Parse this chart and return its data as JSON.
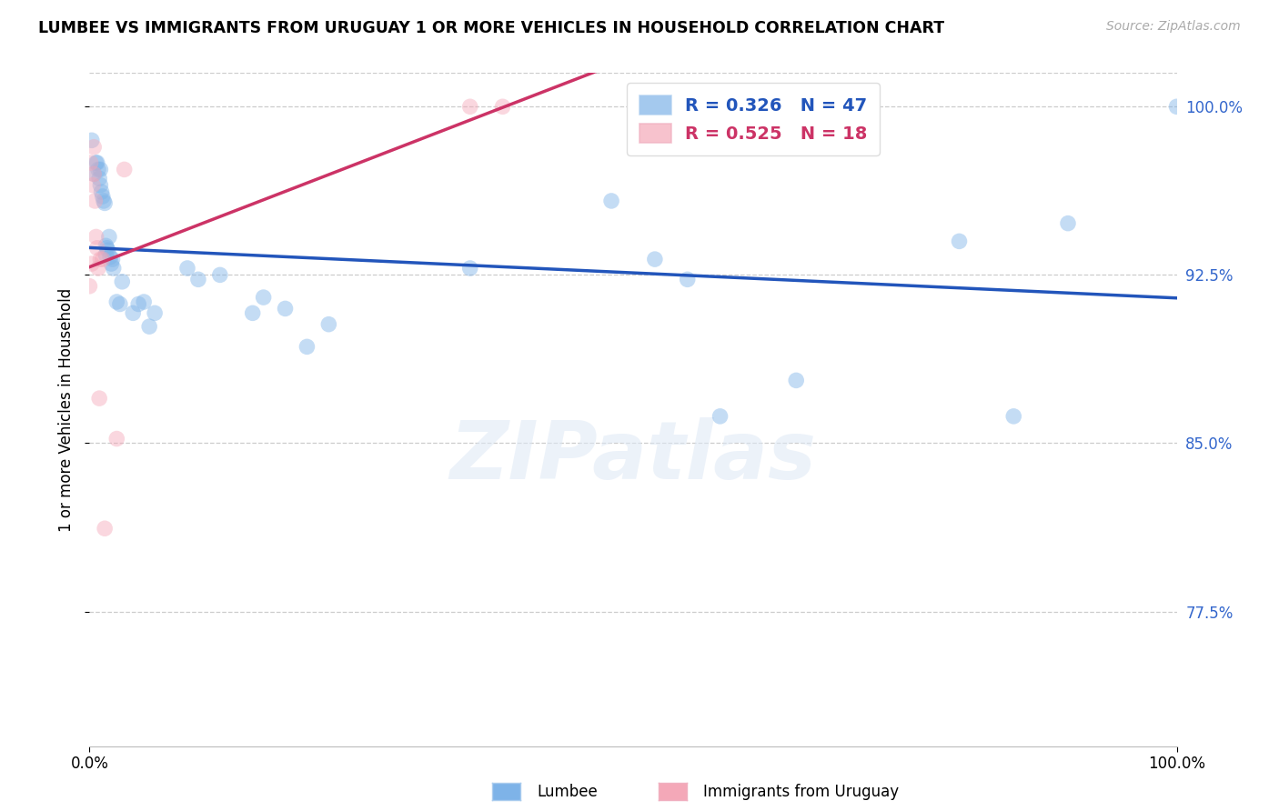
{
  "title": "LUMBEE VS IMMIGRANTS FROM URUGUAY 1 OR MORE VEHICLES IN HOUSEHOLD CORRELATION CHART",
  "source": "Source: ZipAtlas.com",
  "ylabel": "1 or more Vehicles in Household",
  "legend_lumbee": "Lumbee",
  "legend_uruguay": "Immigrants from Uruguay",
  "R_lumbee": "0.326",
  "N_lumbee": "47",
  "R_uruguay": "0.525",
  "N_uruguay": "18",
  "lumbee_color": "#7EB3E8",
  "uruguay_color": "#F4A8B8",
  "trendline_lumbee_color": "#2255BB",
  "trendline_uruguay_color": "#CC3366",
  "xmin": 0.0,
  "xmax": 1.0,
  "ymin": 0.715,
  "ymax": 1.015,
  "yticks": [
    0.775,
    0.85,
    0.925,
    1.0
  ],
  "ytick_labels": [
    "77.5%",
    "85.0%",
    "92.5%",
    "100.0%"
  ],
  "watermark_text": "ZIPatlas",
  "lumbee_x": [
    0.002,
    0.004,
    0.006,
    0.007,
    0.008,
    0.009,
    0.01,
    0.01,
    0.011,
    0.012,
    0.013,
    0.014,
    0.015,
    0.015,
    0.016,
    0.017,
    0.018,
    0.019,
    0.02,
    0.021,
    0.022,
    0.025,
    0.028,
    0.03,
    0.04,
    0.045,
    0.05,
    0.055,
    0.06,
    0.09,
    0.1,
    0.12,
    0.15,
    0.16,
    0.18,
    0.2,
    0.22,
    0.35,
    0.48,
    0.52,
    0.55,
    0.58,
    0.65,
    0.8,
    0.85,
    0.9,
    1.0
  ],
  "lumbee_y": [
    0.985,
    0.97,
    0.975,
    0.975,
    0.972,
    0.968,
    0.965,
    0.972,
    0.962,
    0.96,
    0.958,
    0.957,
    0.934,
    0.938,
    0.937,
    0.936,
    0.942,
    0.933,
    0.93,
    0.932,
    0.928,
    0.913,
    0.912,
    0.922,
    0.908,
    0.912,
    0.913,
    0.902,
    0.908,
    0.928,
    0.923,
    0.925,
    0.908,
    0.915,
    0.91,
    0.893,
    0.903,
    0.928,
    0.958,
    0.932,
    0.923,
    0.862,
    0.878,
    0.94,
    0.862,
    0.948,
    1.0
  ],
  "uruguay_x": [
    0.0,
    0.001,
    0.002,
    0.003,
    0.004,
    0.004,
    0.005,
    0.006,
    0.007,
    0.008,
    0.009,
    0.01,
    0.012,
    0.014,
    0.025,
    0.032,
    0.35,
    0.38
  ],
  "uruguay_y": [
    0.92,
    0.975,
    0.93,
    0.965,
    0.97,
    0.982,
    0.958,
    0.942,
    0.937,
    0.928,
    0.87,
    0.932,
    0.932,
    0.812,
    0.852,
    0.972,
    1.0,
    1.0
  ]
}
